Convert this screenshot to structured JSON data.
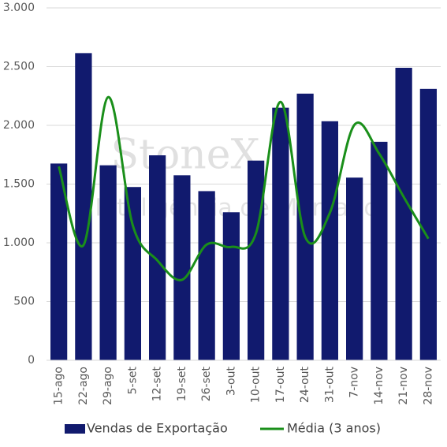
{
  "chart_data": {
    "type": "bar-line",
    "watermark": [
      "StoneX",
      "Inteligência de Mercado"
    ],
    "categories": [
      "15-ago",
      "22-ago",
      "29-ago",
      "5-set",
      "12-set",
      "19-set",
      "26-set",
      "3-out",
      "10-out",
      "17-out",
      "24-out",
      "31-out",
      "7-nov",
      "14-nov",
      "21-nov",
      "28-nov"
    ],
    "series": [
      {
        "name": "Vendas de Exportação",
        "type": "bar",
        "color": "#111a6e",
        "values": [
          1675,
          2615,
          1660,
          1475,
          1745,
          1575,
          1440,
          1260,
          1700,
          2150,
          2270,
          2035,
          1555,
          1860,
          2490,
          2310
        ]
      },
      {
        "name": "Média (3 anos)",
        "type": "line",
        "color": "#1a8f1a",
        "values": [
          1650,
          980,
          2240,
          1150,
          850,
          685,
          985,
          965,
          1080,
          2200,
          1050,
          1255,
          2005,
          1760,
          1390,
          1035
        ]
      }
    ],
    "ylim": [
      0,
      3000
    ],
    "yticks": [
      {
        "value": 0,
        "label": "0"
      },
      {
        "value": 500,
        "label": "500"
      },
      {
        "value": 1000,
        "label": "1.000"
      },
      {
        "value": 1500,
        "label": "1.500"
      },
      {
        "value": 2000,
        "label": "2.000"
      },
      {
        "value": 2500,
        "label": "2.500"
      },
      {
        "value": 3000,
        "label": "3.000"
      }
    ],
    "grid": true
  }
}
